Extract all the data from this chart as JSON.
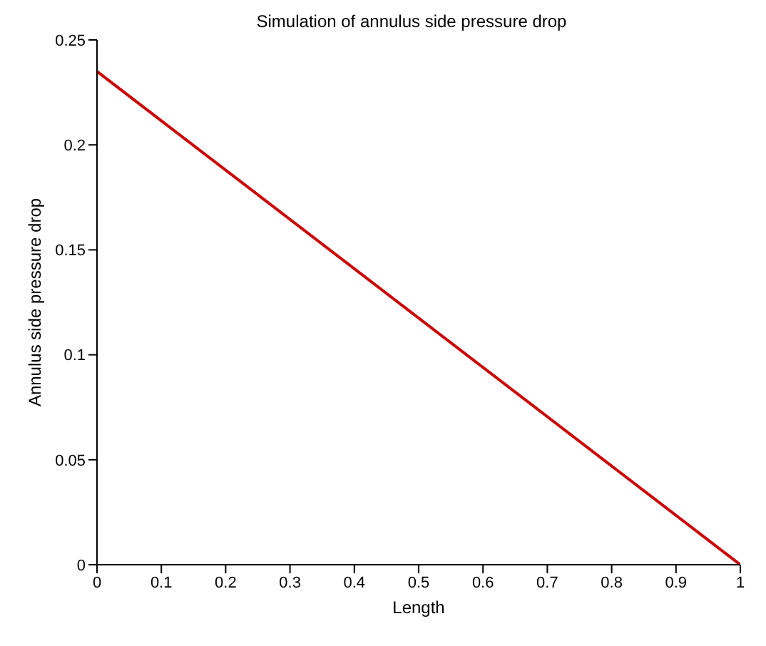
{
  "chart_data": {
    "type": "line",
    "title": "Simulation of annulus side pressure drop",
    "xlabel": "Length",
    "ylabel": "Annulus side pressure drop",
    "x": [
      0,
      1
    ],
    "series": [
      {
        "color": "#cc0000",
        "values": [
          0.235,
          0
        ]
      }
    ],
    "xlim": [
      0,
      1
    ],
    "xticks": [
      0,
      0.1,
      0.2,
      0.3,
      0.4,
      0.5,
      0.6,
      0.7,
      0.8,
      0.9,
      1
    ],
    "ylim": [
      0,
      0.25
    ],
    "yticks": [
      0,
      0.05,
      0.1,
      0.15,
      0.2,
      0.25
    ],
    "grid": false,
    "legend": false,
    "marker": "none",
    "line_style": "solid"
  }
}
